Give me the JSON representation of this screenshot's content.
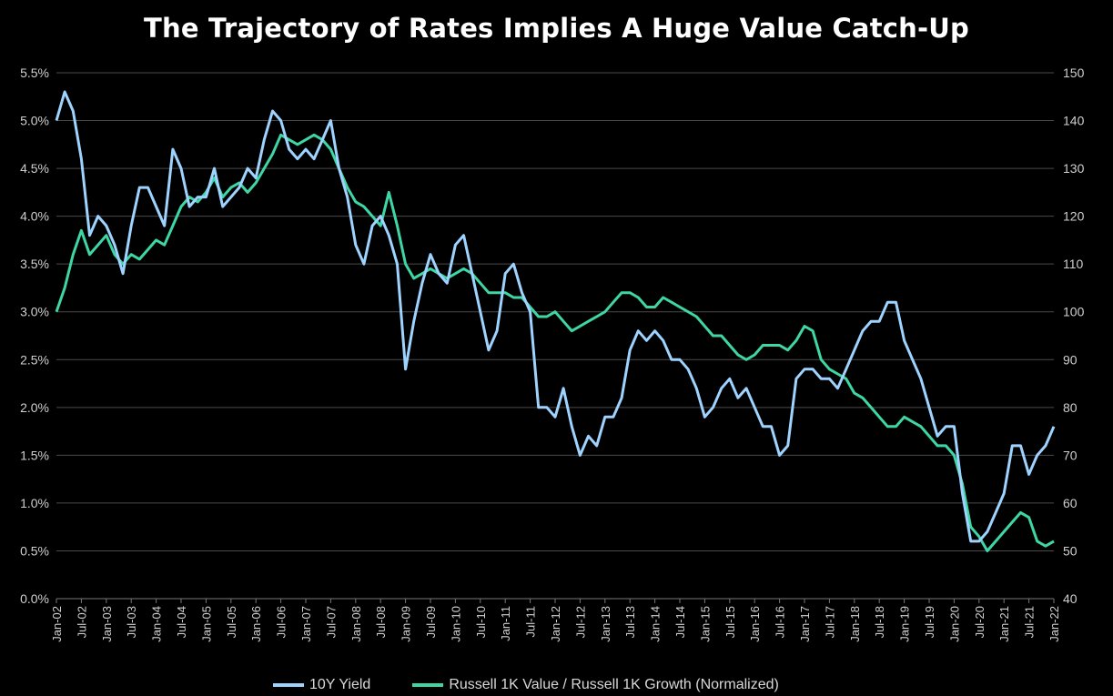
{
  "chart_data": {
    "type": "line",
    "title": "The Trajectory of Rates Implies A Huge Value Catch-Up",
    "xlabel": "",
    "y_left": {
      "label": "",
      "lim": [
        0,
        5.5
      ],
      "ticks": [
        "0.0%",
        "0.5%",
        "1.0%",
        "1.5%",
        "2.0%",
        "2.5%",
        "3.0%",
        "3.5%",
        "4.0%",
        "4.5%",
        "5.0%",
        "5.5%"
      ]
    },
    "y_right": {
      "label": "",
      "lim": [
        40,
        150
      ],
      "ticks": [
        "40",
        "50",
        "60",
        "70",
        "80",
        "90",
        "100",
        "110",
        "120",
        "130",
        "140",
        "150"
      ]
    },
    "x_ticks": [
      "Jan-02",
      "Jul-02",
      "Jan-03",
      "Jul-03",
      "Jan-04",
      "Jul-04",
      "Jan-05",
      "Jul-05",
      "Jan-06",
      "Jul-06",
      "Jan-07",
      "Jul-07",
      "Jan-08",
      "Jul-08",
      "Jan-09",
      "Jul-09",
      "Jan-10",
      "Jul-10",
      "Jan-11",
      "Jul-11",
      "Jan-12",
      "Jul-12",
      "Jan-13",
      "Jul-13",
      "Jan-14",
      "Jul-14",
      "Jan-15",
      "Jul-15",
      "Jan-16",
      "Jul-16",
      "Jan-17",
      "Jul-17",
      "Jan-18",
      "Jul-18",
      "Jan-19",
      "Jul-19",
      "Jan-20",
      "Jul-20",
      "Jan-21",
      "Jul-21",
      "Jan-22"
    ],
    "grid": true,
    "legend_position": "bottom",
    "colors": {
      "yield": "#9fd3ff",
      "ratio": "#3fd6a6",
      "grid": "#4a4a4a",
      "axis_text": "#cfcfcf"
    },
    "series": [
      {
        "name": "10Y Yield",
        "axis": "left",
        "x": [
          "2002-01",
          "2002-03",
          "2002-05",
          "2002-07",
          "2002-09",
          "2002-11",
          "2003-01",
          "2003-03",
          "2003-05",
          "2003-07",
          "2003-09",
          "2003-11",
          "2004-01",
          "2004-03",
          "2004-05",
          "2004-07",
          "2004-09",
          "2004-11",
          "2005-01",
          "2005-03",
          "2005-05",
          "2005-07",
          "2005-09",
          "2005-11",
          "2006-01",
          "2006-03",
          "2006-05",
          "2006-07",
          "2006-09",
          "2006-11",
          "2007-01",
          "2007-03",
          "2007-05",
          "2007-07",
          "2007-09",
          "2007-11",
          "2008-01",
          "2008-03",
          "2008-05",
          "2008-07",
          "2008-09",
          "2008-11",
          "2009-01",
          "2009-03",
          "2009-05",
          "2009-07",
          "2009-09",
          "2009-11",
          "2010-01",
          "2010-03",
          "2010-05",
          "2010-07",
          "2010-09",
          "2010-11",
          "2011-01",
          "2011-03",
          "2011-05",
          "2011-07",
          "2011-09",
          "2011-11",
          "2012-01",
          "2012-03",
          "2012-05",
          "2012-07",
          "2012-09",
          "2012-11",
          "2013-01",
          "2013-03",
          "2013-05",
          "2013-07",
          "2013-09",
          "2013-11",
          "2014-01",
          "2014-03",
          "2014-05",
          "2014-07",
          "2014-09",
          "2014-11",
          "2015-01",
          "2015-03",
          "2015-05",
          "2015-07",
          "2015-09",
          "2015-11",
          "2016-01",
          "2016-03",
          "2016-05",
          "2016-07",
          "2016-09",
          "2016-11",
          "2017-01",
          "2017-03",
          "2017-05",
          "2017-07",
          "2017-09",
          "2017-11",
          "2018-01",
          "2018-03",
          "2018-05",
          "2018-07",
          "2018-09",
          "2018-11",
          "2019-01",
          "2019-03",
          "2019-05",
          "2019-07",
          "2019-09",
          "2019-11",
          "2020-01",
          "2020-03",
          "2020-05",
          "2020-07",
          "2020-09",
          "2020-11",
          "2021-01",
          "2021-03",
          "2021-05",
          "2021-07",
          "2021-09",
          "2021-11",
          "2022-01"
        ],
        "values": [
          5.0,
          5.3,
          5.1,
          4.6,
          3.8,
          4.0,
          3.9,
          3.7,
          3.4,
          3.9,
          4.3,
          4.3,
          4.1,
          3.9,
          4.7,
          4.5,
          4.1,
          4.2,
          4.2,
          4.5,
          4.1,
          4.2,
          4.3,
          4.5,
          4.4,
          4.8,
          5.1,
          5.0,
          4.7,
          4.6,
          4.7,
          4.6,
          4.8,
          5.0,
          4.5,
          4.2,
          3.7,
          3.5,
          3.9,
          4.0,
          3.8,
          3.5,
          2.4,
          2.9,
          3.3,
          3.6,
          3.4,
          3.3,
          3.7,
          3.8,
          3.4,
          3.0,
          2.6,
          2.8,
          3.4,
          3.5,
          3.2,
          3.0,
          2.0,
          2.0,
          1.9,
          2.2,
          1.8,
          1.5,
          1.7,
          1.6,
          1.9,
          1.9,
          2.1,
          2.6,
          2.8,
          2.7,
          2.8,
          2.7,
          2.5,
          2.5,
          2.4,
          2.2,
          1.9,
          2.0,
          2.2,
          2.3,
          2.1,
          2.2,
          2.0,
          1.8,
          1.8,
          1.5,
          1.6,
          2.3,
          2.4,
          2.4,
          2.3,
          2.3,
          2.2,
          2.4,
          2.6,
          2.8,
          2.9,
          2.9,
          3.1,
          3.1,
          2.7,
          2.5,
          2.3,
          2.0,
          1.7,
          1.8,
          1.8,
          1.1,
          0.6,
          0.6,
          0.7,
          0.9,
          1.1,
          1.6,
          1.6,
          1.3,
          1.5,
          1.6,
          1.8
        ]
      },
      {
        "name": "Russell 1K Value / Russell 1K Growth (Normalized)",
        "axis": "right",
        "x": [
          "2002-01",
          "2002-03",
          "2002-05",
          "2002-07",
          "2002-09",
          "2002-11",
          "2003-01",
          "2003-03",
          "2003-05",
          "2003-07",
          "2003-09",
          "2003-11",
          "2004-01",
          "2004-03",
          "2004-05",
          "2004-07",
          "2004-09",
          "2004-11",
          "2005-01",
          "2005-03",
          "2005-05",
          "2005-07",
          "2005-09",
          "2005-11",
          "2006-01",
          "2006-03",
          "2006-05",
          "2006-07",
          "2006-09",
          "2006-11",
          "2007-01",
          "2007-03",
          "2007-05",
          "2007-07",
          "2007-09",
          "2007-11",
          "2008-01",
          "2008-03",
          "2008-05",
          "2008-07",
          "2008-09",
          "2008-11",
          "2009-01",
          "2009-03",
          "2009-05",
          "2009-07",
          "2009-09",
          "2009-11",
          "2010-01",
          "2010-03",
          "2010-05",
          "2010-07",
          "2010-09",
          "2010-11",
          "2011-01",
          "2011-03",
          "2011-05",
          "2011-07",
          "2011-09",
          "2011-11",
          "2012-01",
          "2012-03",
          "2012-05",
          "2012-07",
          "2012-09",
          "2012-11",
          "2013-01",
          "2013-03",
          "2013-05",
          "2013-07",
          "2013-09",
          "2013-11",
          "2014-01",
          "2014-03",
          "2014-05",
          "2014-07",
          "2014-09",
          "2014-11",
          "2015-01",
          "2015-03",
          "2015-05",
          "2015-07",
          "2015-09",
          "2015-11",
          "2016-01",
          "2016-03",
          "2016-05",
          "2016-07",
          "2016-09",
          "2016-11",
          "2017-01",
          "2017-03",
          "2017-05",
          "2017-07",
          "2017-09",
          "2017-11",
          "2018-01",
          "2018-03",
          "2018-05",
          "2018-07",
          "2018-09",
          "2018-11",
          "2019-01",
          "2019-03",
          "2019-05",
          "2019-07",
          "2019-09",
          "2019-11",
          "2020-01",
          "2020-03",
          "2020-05",
          "2020-07",
          "2020-09",
          "2020-11",
          "2021-01",
          "2021-03",
          "2021-05",
          "2021-07",
          "2021-09",
          "2021-11",
          "2022-01"
        ],
        "values": [
          100,
          105,
          112,
          117,
          112,
          114,
          116,
          112,
          110,
          112,
          111,
          113,
          115,
          114,
          118,
          122,
          124,
          123,
          125,
          128,
          124,
          126,
          127,
          125,
          127,
          130,
          133,
          137,
          136,
          135,
          136,
          137,
          136,
          134,
          130,
          126,
          123,
          122,
          120,
          118,
          125,
          118,
          110,
          107,
          108,
          109,
          108,
          107,
          108,
          109,
          108,
          106,
          104,
          104,
          104,
          103,
          103,
          101,
          99,
          99,
          100,
          98,
          96,
          97,
          98,
          99,
          100,
          102,
          104,
          104,
          103,
          101,
          101,
          103,
          102,
          101,
          100,
          99,
          97,
          95,
          95,
          93,
          91,
          90,
          91,
          93,
          93,
          93,
          92,
          94,
          97,
          96,
          90,
          88,
          87,
          86,
          83,
          82,
          80,
          78,
          76,
          76,
          78,
          77,
          76,
          74,
          72,
          72,
          70,
          64,
          55,
          53,
          50,
          52,
          54,
          56,
          58,
          57,
          52,
          51,
          52
        ]
      }
    ]
  }
}
